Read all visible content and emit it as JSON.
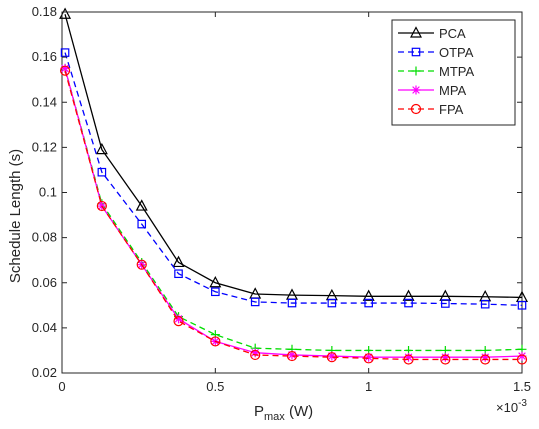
{
  "chart_data": {
    "type": "line",
    "title": "",
    "xlabel": "P",
    "xlabel_sub": "max",
    "xlabel_unit": " (W)",
    "ylabel": "Schedule Length (s)",
    "x_multiplier": "×10",
    "x_multiplier_exp": "-3",
    "xlim": [
      0,
      1.5
    ],
    "ylim": [
      0.02,
      0.18
    ],
    "grid": false,
    "legend_position": "top-right",
    "x_ticks": [
      0,
      0.5,
      1,
      1.5
    ],
    "x_tick_labels": [
      "0",
      "0.5",
      "1",
      "1.5"
    ],
    "y_ticks": [
      0.02,
      0.04,
      0.06,
      0.08,
      0.1,
      0.12,
      0.14,
      0.16,
      0.18
    ],
    "y_tick_labels": [
      "0.02",
      "0.04",
      "0.06",
      "0.08",
      "0.1",
      "0.12",
      "0.14",
      "0.16",
      "0.18"
    ],
    "x": [
      0.01,
      0.13,
      0.26,
      0.38,
      0.5,
      0.63,
      0.75,
      0.88,
      1.0,
      1.13,
      1.25,
      1.38,
      1.5
    ],
    "series": [
      {
        "name": "PCA",
        "color": "#000000",
        "marker": "triangle",
        "dash": "solid",
        "values": [
          0.179,
          0.119,
          0.094,
          0.069,
          0.06,
          0.055,
          0.0545,
          0.0543,
          0.054,
          0.054,
          0.054,
          0.0538,
          0.0535
        ]
      },
      {
        "name": "OTPA",
        "color": "#0000ff",
        "marker": "square",
        "dash": "dashed",
        "values": [
          0.162,
          0.109,
          0.086,
          0.064,
          0.056,
          0.0515,
          0.051,
          0.051,
          0.051,
          0.051,
          0.0508,
          0.0505,
          0.05
        ]
      },
      {
        "name": "MTPA",
        "color": "#00dd00",
        "marker": "plus",
        "dash": "dashed",
        "values": [
          0.155,
          0.095,
          0.069,
          0.045,
          0.037,
          0.031,
          0.0305,
          0.03,
          0.03,
          0.03,
          0.03,
          0.03,
          0.0305
        ]
      },
      {
        "name": "MPA",
        "color": "#ff00ff",
        "marker": "asterisk",
        "dash": "solid",
        "values": [
          0.155,
          0.094,
          0.068,
          0.044,
          0.034,
          0.029,
          0.028,
          0.0275,
          0.027,
          0.027,
          0.027,
          0.027,
          0.0275
        ]
      },
      {
        "name": "FPA",
        "color": "#ff0000",
        "marker": "circle",
        "dash": "dashed",
        "values": [
          0.154,
          0.094,
          0.068,
          0.043,
          0.034,
          0.028,
          0.0275,
          0.027,
          0.0265,
          0.026,
          0.026,
          0.026,
          0.026
        ]
      }
    ]
  }
}
